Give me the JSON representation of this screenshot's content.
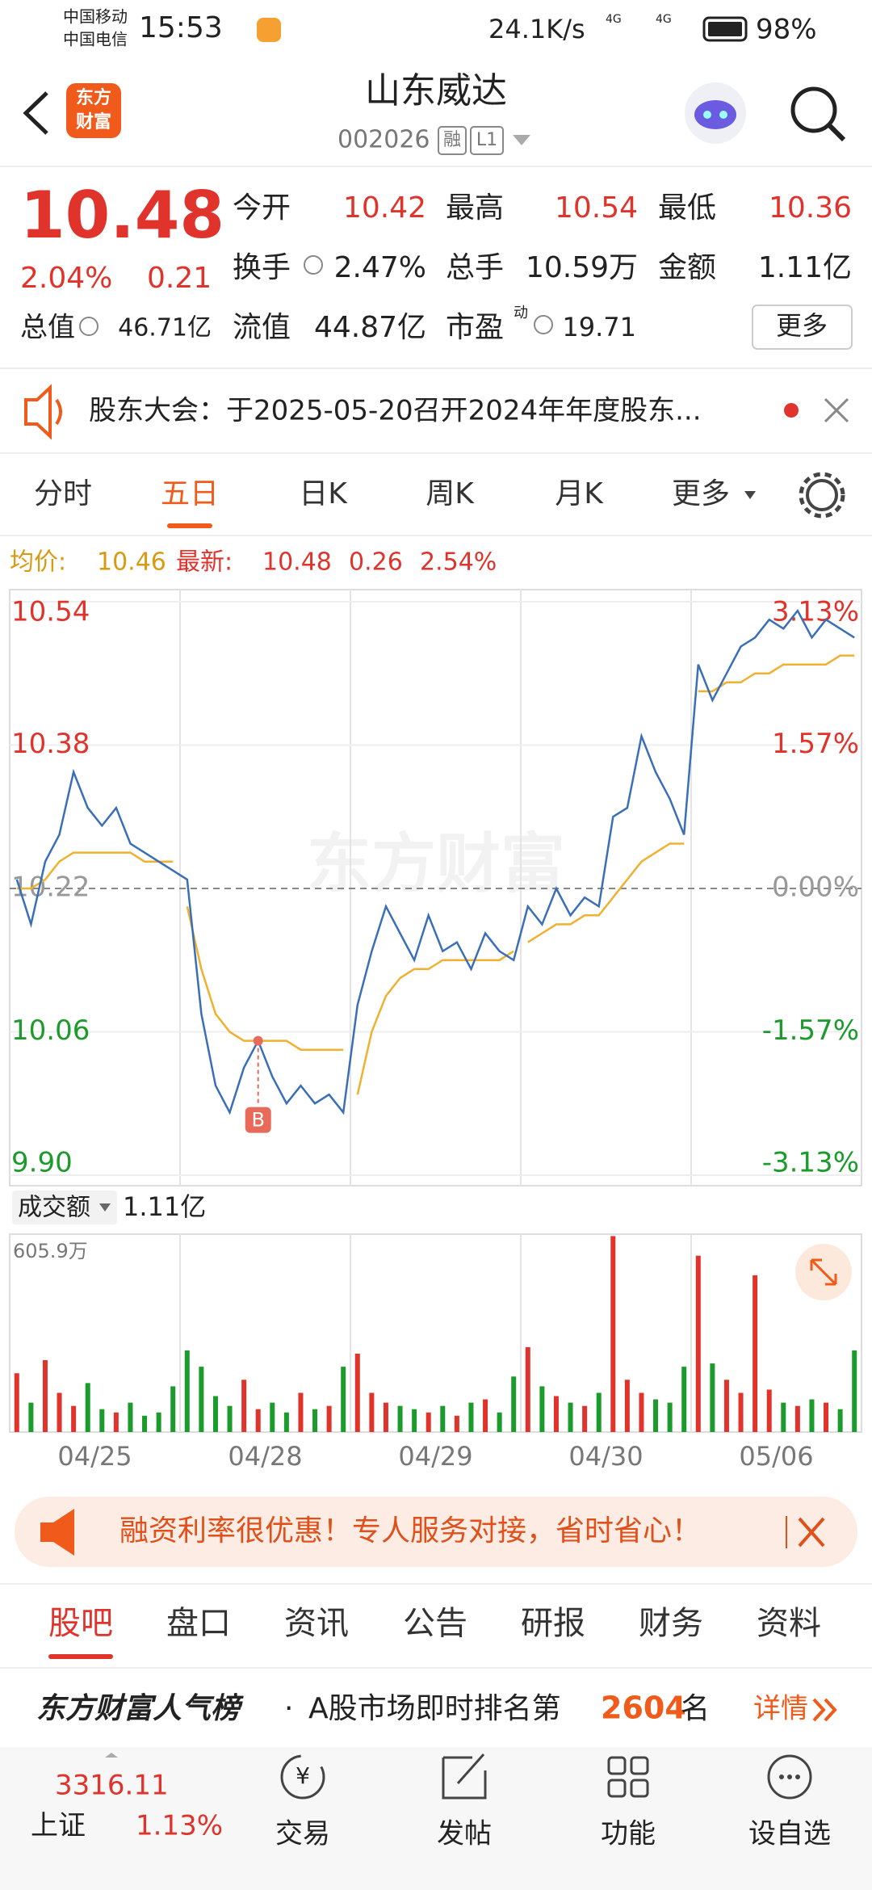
{
  "status": {
    "carrier1": "中国移动",
    "carrier2": "中国电信",
    "time": "15:53",
    "speed": "24.1K/s",
    "net1": "4G",
    "net2": "4G",
    "battery": "98%"
  },
  "header": {
    "logo1": "东方",
    "logo2": "财富",
    "name": "山东威达",
    "code": "002026",
    "badge1": "融",
    "badge2": "L1"
  },
  "quote": {
    "price": "10.48",
    "change_pct": "2.04%",
    "change": "0.21",
    "open_label": "今开",
    "open": "10.42",
    "high_label": "最高",
    "high": "10.54",
    "low_label": "最低",
    "low": "10.36",
    "turnover_label": "换手",
    "turnover": "2.47%",
    "volume_label": "总手",
    "volume": "10.59万",
    "amount_label": "金额",
    "amount": "1.11亿",
    "mcap_label": "总值",
    "mcap": "46.71亿",
    "float_label": "流值",
    "float": "44.87亿",
    "pe_label": "市盈",
    "pe_sup": "动",
    "pe": "19.71",
    "more": "更多"
  },
  "notice": {
    "text": "股东大会：于2025-05-20召开2024年年度股东..."
  },
  "tabs": [
    "分时",
    "五日",
    "日K",
    "周K",
    "月K",
    "更多"
  ],
  "info": {
    "avg_label": "均价:",
    "avg": "10.46",
    "last_label": "最新:",
    "last": "10.48",
    "chg": "0.26",
    "pct": "2.54%"
  },
  "chart": {
    "watermark": "东方财富",
    "ylim": [
      9.9,
      10.54
    ],
    "yticks": [
      10.54,
      10.38,
      10.22,
      10.06,
      {
        "value": 9.9,
        "label": "9.90"
      }
    ],
    "y2ticks": [
      {
        "value": 3.13,
        "label": "3.13%"
      },
      {
        "value": 1.57,
        "label": "1.57%"
      },
      {
        "value": 0,
        "label": "0.00%"
      },
      {
        "value": -1.57,
        "label": "-1.57%"
      },
      {
        "value": -3.13,
        "label": "-3.13%"
      }
    ],
    "days": [
      {
        "date": "04/25",
        "price": [
          10.23,
          10.18,
          10.25,
          10.28,
          10.35,
          10.31,
          10.29,
          10.31,
          10.27,
          10.26,
          10.25,
          10.24
        ],
        "avg": [
          10.22,
          10.22,
          10.23,
          10.25,
          10.26,
          10.26,
          10.26,
          10.26,
          10.26,
          10.25,
          10.25,
          10.25
        ],
        "volume": [
          180,
          90,
          220,
          120,
          80,
          150,
          70,
          60,
          90,
          50,
          60,
          140
        ]
      },
      {
        "date": "04/28",
        "price": [
          10.23,
          10.08,
          10.0,
          9.97,
          10.02,
          10.05,
          10.01,
          9.98,
          10.0,
          9.98,
          9.99,
          9.97
        ],
        "avg": [
          10.2,
          10.13,
          10.08,
          10.06,
          10.05,
          10.05,
          10.05,
          10.05,
          10.04,
          10.04,
          10.04,
          10.04
        ],
        "volume": [
          250,
          200,
          110,
          80,
          160,
          70,
          90,
          60,
          120,
          70,
          80,
          200
        ],
        "marker": {
          "label": "B",
          "price": 10.05
        }
      },
      {
        "date": "04/29",
        "price": [
          10.09,
          10.15,
          10.2,
          10.17,
          10.14,
          10.19,
          10.15,
          10.16,
          10.13,
          10.17,
          10.15,
          10.14
        ],
        "avg": [
          9.99,
          10.06,
          10.1,
          10.12,
          10.13,
          10.13,
          10.14,
          10.14,
          10.14,
          10.14,
          10.14,
          10.15
        ],
        "volume": [
          240,
          120,
          90,
          80,
          70,
          60,
          80,
          50,
          90,
          100,
          60,
          170
        ]
      },
      {
        "date": "04/30",
        "price": [
          10.2,
          10.18,
          10.22,
          10.19,
          10.21,
          10.2,
          10.3,
          10.31,
          10.39,
          10.35,
          10.32,
          10.28
        ],
        "avg": [
          10.16,
          10.17,
          10.18,
          10.18,
          10.19,
          10.19,
          10.21,
          10.23,
          10.25,
          10.26,
          10.27,
          10.27
        ],
        "volume": [
          260,
          140,
          110,
          90,
          80,
          120,
          600,
          160,
          120,
          100,
          90,
          200
        ]
      },
      {
        "date": "05/06",
        "price": [
          10.47,
          10.43,
          10.46,
          10.49,
          10.5,
          10.52,
          10.51,
          10.53,
          10.5,
          10.52,
          10.51,
          10.5
        ],
        "avg": [
          10.44,
          10.44,
          10.45,
          10.45,
          10.46,
          10.46,
          10.47,
          10.47,
          10.47,
          10.47,
          10.48,
          10.48
        ],
        "volume": [
          540,
          210,
          160,
          120,
          480,
          130,
          90,
          80,
          100,
          90,
          70,
          250
        ]
      }
    ]
  },
  "volume": {
    "label": "成交额",
    "total": "1.11亿",
    "vmax": {
      "value": 605.9,
      "label": "605.9万"
    }
  },
  "ad": {
    "text": "融资利率很优惠！专人服务对接，省时省心！"
  },
  "bottom_tabs": [
    "股吧",
    "盘口",
    "资讯",
    "公告",
    "研报",
    "财务",
    "资料"
  ],
  "rank": {
    "brand": "东方财富人气榜",
    "dot": "·",
    "text": "A股市场即时排名第",
    "num": "2604",
    "suffix": "名",
    "link": "详情"
  },
  "nav": {
    "index": "3316.11",
    "index_name": "上证",
    "index_pct": "1.13%",
    "yen": "¥",
    "items": [
      "交易",
      "发帖",
      "功能",
      "设自选"
    ]
  }
}
